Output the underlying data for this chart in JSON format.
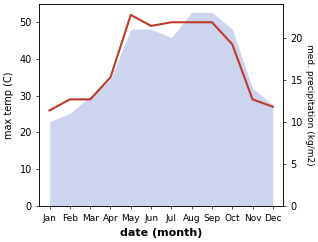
{
  "months": [
    "Jan",
    "Feb",
    "Mar",
    "Apr",
    "May",
    "Jun",
    "Jul",
    "Aug",
    "Sep",
    "Oct",
    "Nov",
    "Dec"
  ],
  "temp": [
    26,
    29,
    29,
    35,
    52,
    49,
    50,
    50,
    50,
    44,
    29,
    27
  ],
  "precip": [
    10,
    11,
    13,
    15,
    21,
    21,
    20,
    23,
    23,
    21,
    14,
    12
  ],
  "temp_color": "#c0392b",
  "precip_fill_color": "#b8c4e8",
  "ylim_temp": [
    0,
    55
  ],
  "ylim_precip": [
    0,
    24
  ],
  "ylabel_left": "max temp (C)",
  "ylabel_right": "med. precipitation (kg/m2)",
  "xlabel": "date (month)",
  "temp_yticks": [
    0,
    10,
    20,
    30,
    40,
    50
  ],
  "precip_yticks": [
    0,
    5,
    10,
    15,
    20
  ]
}
